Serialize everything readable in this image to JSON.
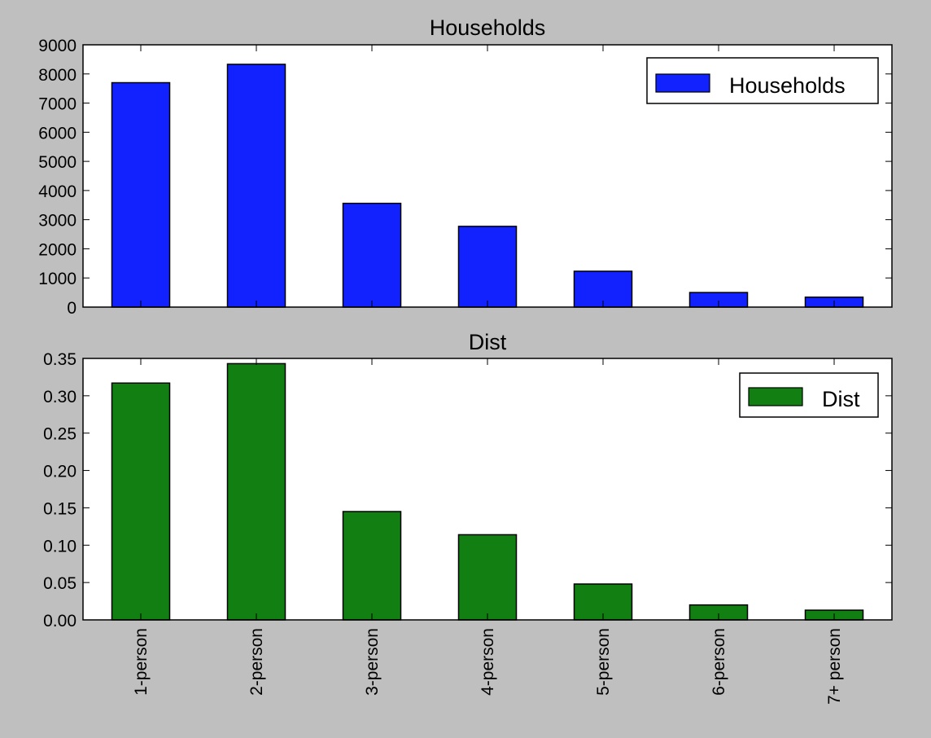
{
  "chart_data": [
    {
      "type": "bar",
      "title": "Households",
      "categories": [
        "1-person",
        "2-person",
        "3-person",
        "4-person",
        "5-person",
        "6-person",
        "7+ person"
      ],
      "series": [
        {
          "name": "Households",
          "values": [
            7700,
            8330,
            3560,
            2770,
            1230,
            500,
            340
          ]
        }
      ],
      "ylim": [
        0,
        9000
      ],
      "yticks": [
        "0",
        "1000",
        "2000",
        "3000",
        "4000",
        "5000",
        "6000",
        "7000",
        "8000",
        "9000"
      ],
      "colors": {
        "bar": "#1122ff"
      },
      "legend_placement": "top-right",
      "grid": false
    },
    {
      "type": "bar",
      "title": "Dist",
      "categories": [
        "1-person",
        "2-person",
        "3-person",
        "4-person",
        "5-person",
        "6-person",
        "7+ person"
      ],
      "series": [
        {
          "name": "Dist",
          "values": [
            0.317,
            0.343,
            0.145,
            0.114,
            0.048,
            0.02,
            0.013
          ]
        }
      ],
      "ylim": [
        0,
        0.35
      ],
      "yticks": [
        "0.00",
        "0.05",
        "0.10",
        "0.15",
        "0.20",
        "0.25",
        "0.30",
        "0.35"
      ],
      "colors": {
        "bar": "#117f11"
      },
      "legend_placement": "top-right",
      "grid": false
    }
  ]
}
